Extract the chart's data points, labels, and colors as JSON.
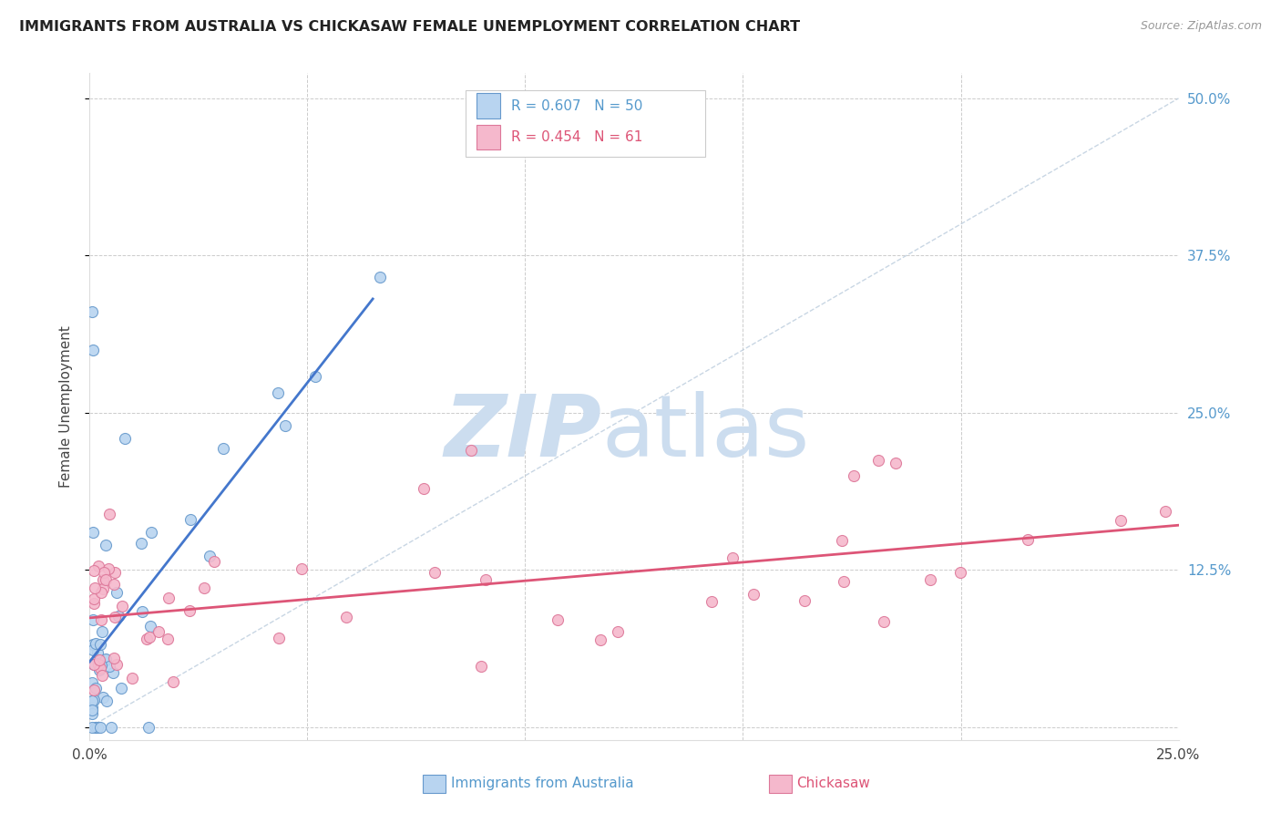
{
  "title": "IMMIGRANTS FROM AUSTRALIA VS CHICKASAW FEMALE UNEMPLOYMENT CORRELATION CHART",
  "source": "Source: ZipAtlas.com",
  "ylabel": "Female Unemployment",
  "xlim": [
    0.0,
    0.25
  ],
  "ylim": [
    -0.01,
    0.52
  ],
  "ytick_positions": [
    0.0,
    0.125,
    0.25,
    0.375,
    0.5
  ],
  "ytick_labels_right": [
    "",
    "12.5%",
    "25.0%",
    "37.5%",
    "50.0%"
  ],
  "series1_label": "Immigrants from Australia",
  "series1_R": "0.607",
  "series1_N": "50",
  "series1_color": "#b8d4f0",
  "series1_edge_color": "#6699cc",
  "series2_label": "Chickasaw",
  "series2_R": "0.454",
  "series2_N": "61",
  "series2_color": "#f5b8cc",
  "series2_edge_color": "#dd7799",
  "reg_line1_color": "#4477cc",
  "reg_line2_color": "#dd5577",
  "diag_line_color": "#bbccdd",
  "watermark_zip_color": "#ccddef",
  "watermark_atlas_color": "#ccddef",
  "grid_color": "#cccccc",
  "background_color": "#ffffff",
  "title_color": "#222222",
  "title_fontsize": 11.5,
  "source_color": "#999999",
  "right_tick_color": "#5599cc",
  "legend_text1_color": "#5599cc",
  "legend_text2_color": "#dd5577",
  "bottom_legend_text1_color": "#5599cc",
  "bottom_legend_text2_color": "#dd5577"
}
